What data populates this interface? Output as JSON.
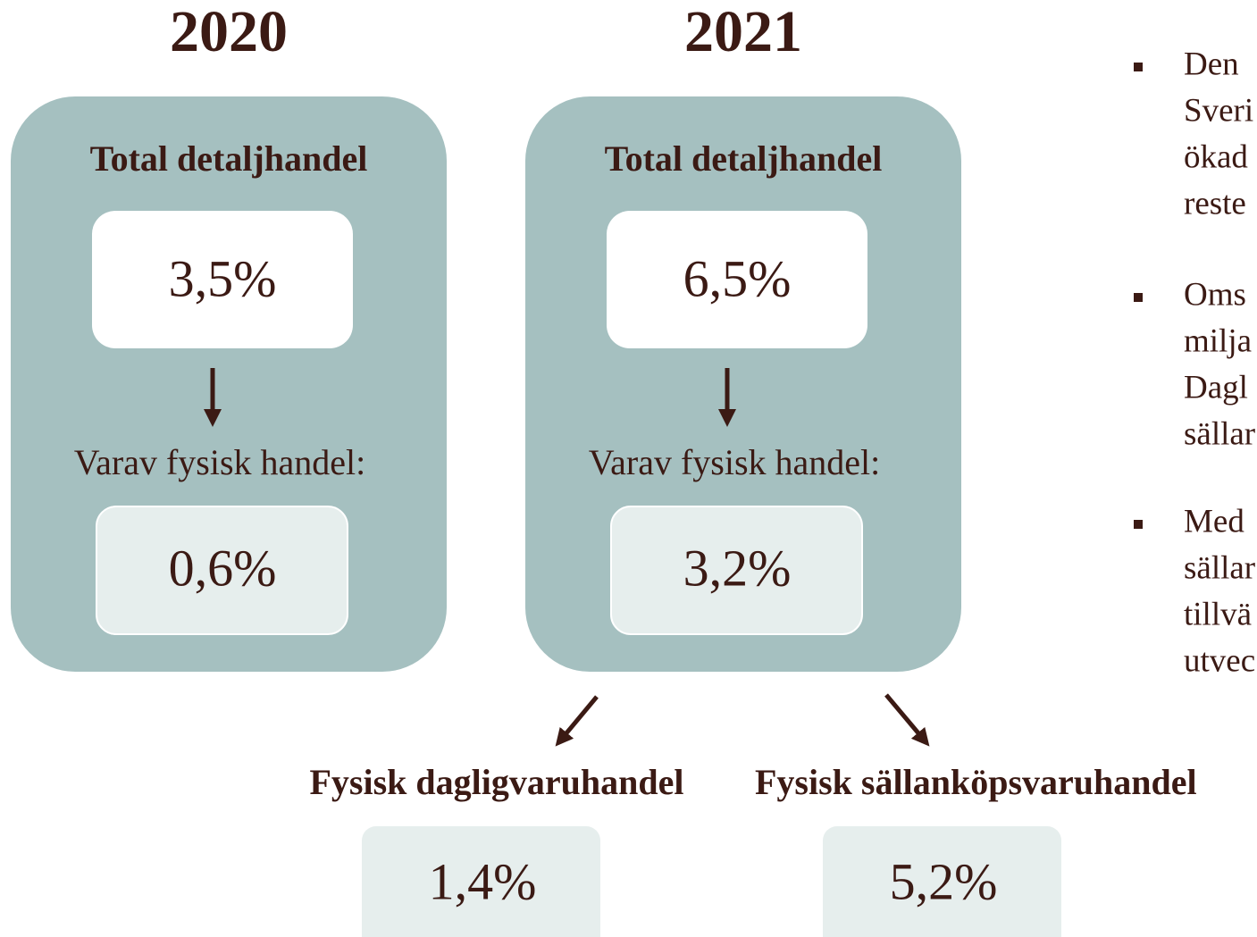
{
  "panels": [
    {
      "year": "2020",
      "total_label": "Total detaljhandel",
      "total_value": "3,5%",
      "sub_label": "Varav fysisk handel:",
      "sub_value": "0,6%"
    },
    {
      "year": "2021",
      "total_label": "Total detaljhandel",
      "total_value": "6,5%",
      "sub_label": "Varav fysisk handel:",
      "sub_value": "3,2%"
    }
  ],
  "breakdown": [
    {
      "label": "Fysisk dagligvaruhandel",
      "value": "1,4%"
    },
    {
      "label": "Fysisk sällanköpsvaruhandel",
      "value": "5,2%"
    }
  ],
  "bullets": [
    [
      "Den",
      "Sveri",
      "ökad",
      "reste"
    ],
    [
      "Oms",
      "milja",
      "Dagl",
      "sällar"
    ],
    [
      "Med",
      "sällar",
      "tillvä",
      "utvec"
    ]
  ]
}
